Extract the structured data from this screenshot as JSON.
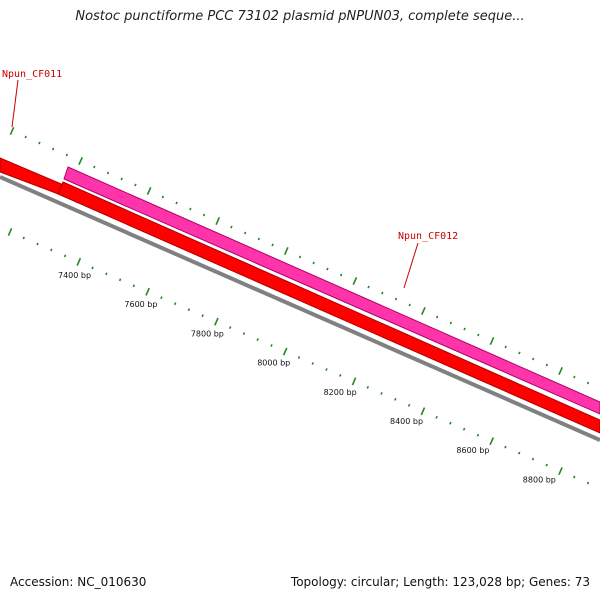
{
  "title": "Nostoc punctiforme PCC 73102 plasmid pNPUN03, complete seque...",
  "accession": "Accession: NC_010630",
  "topology": "Topology: circular; Length: 123,028 bp; Genes: 73",
  "colors": {
    "reverse_cds": "#ff0000",
    "reverse_cds_edge": "#b00000",
    "forward_cds": "#ff33aa",
    "forward_cds_edge": "#b0006a",
    "backbone": "#808080",
    "ticks": "#228822",
    "label_text": "#cc0000"
  },
  "genes": [
    {
      "label": "Npun_CF011",
      "strand": "reverse"
    },
    {
      "label": "Npun_CF012",
      "strand": "forward"
    }
  ],
  "scale_labels": [
    "7400 bp",
    "7600 bp",
    "7800 bp",
    "8000 bp",
    "8200 bp",
    "8400 bp",
    "8600 bp",
    "8800 bp"
  ]
}
